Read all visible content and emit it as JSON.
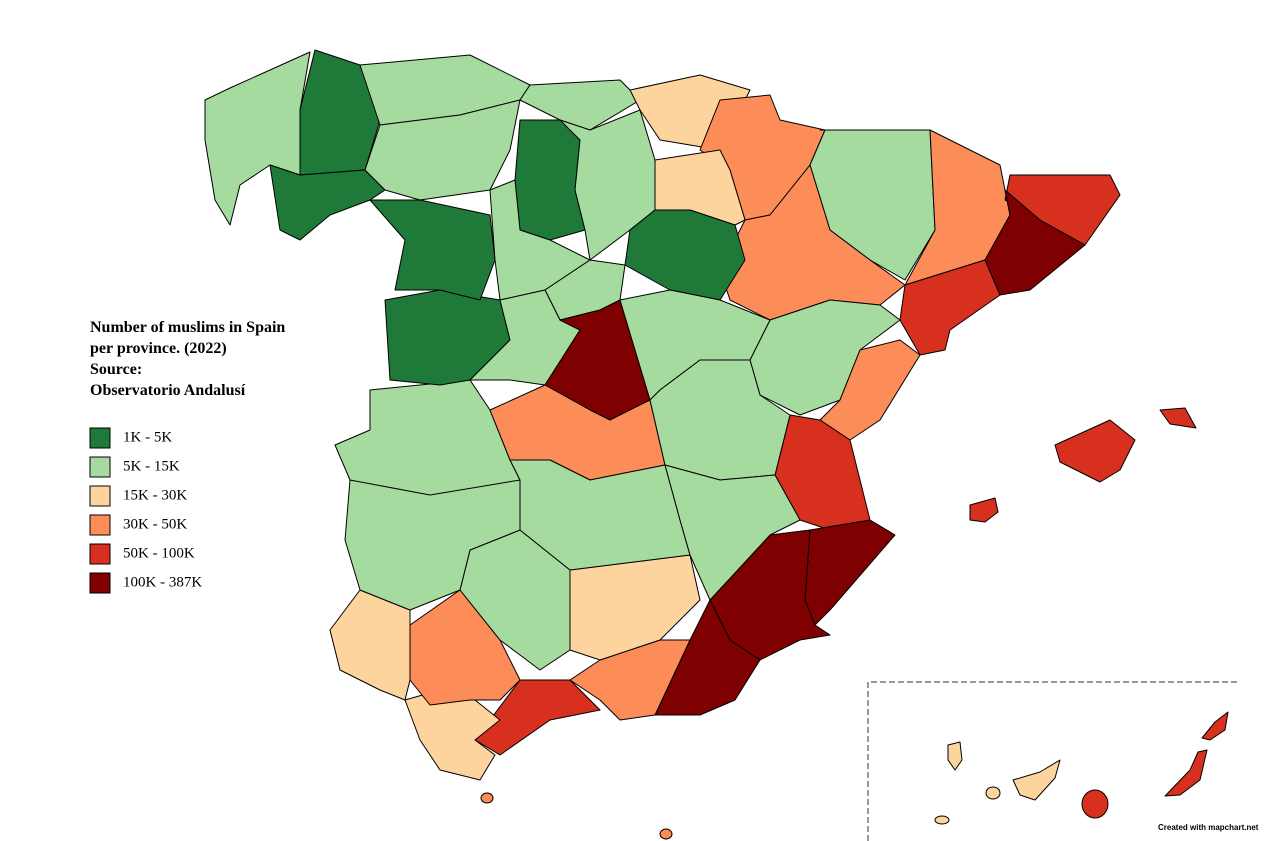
{
  "title": [
    "Number of muslims in Spain",
    "per province. (2022)",
    "Source:",
    "Observatorio Andalusí"
  ],
  "legend": [
    {
      "label": "1K - 5K",
      "color": "#1f7a3a"
    },
    {
      "label": "5K - 15K",
      "color": "#a6dba0"
    },
    {
      "label": "15K - 30K",
      "color": "#fdd49e"
    },
    {
      "label": "30K - 50K",
      "color": "#fc8d59"
    },
    {
      "label": "50K - 100K",
      "color": "#d7301f"
    },
    {
      "label": "100K - 387K",
      "color": "#7f0000"
    }
  ],
  "credit": "Created with mapchart.net"
}
